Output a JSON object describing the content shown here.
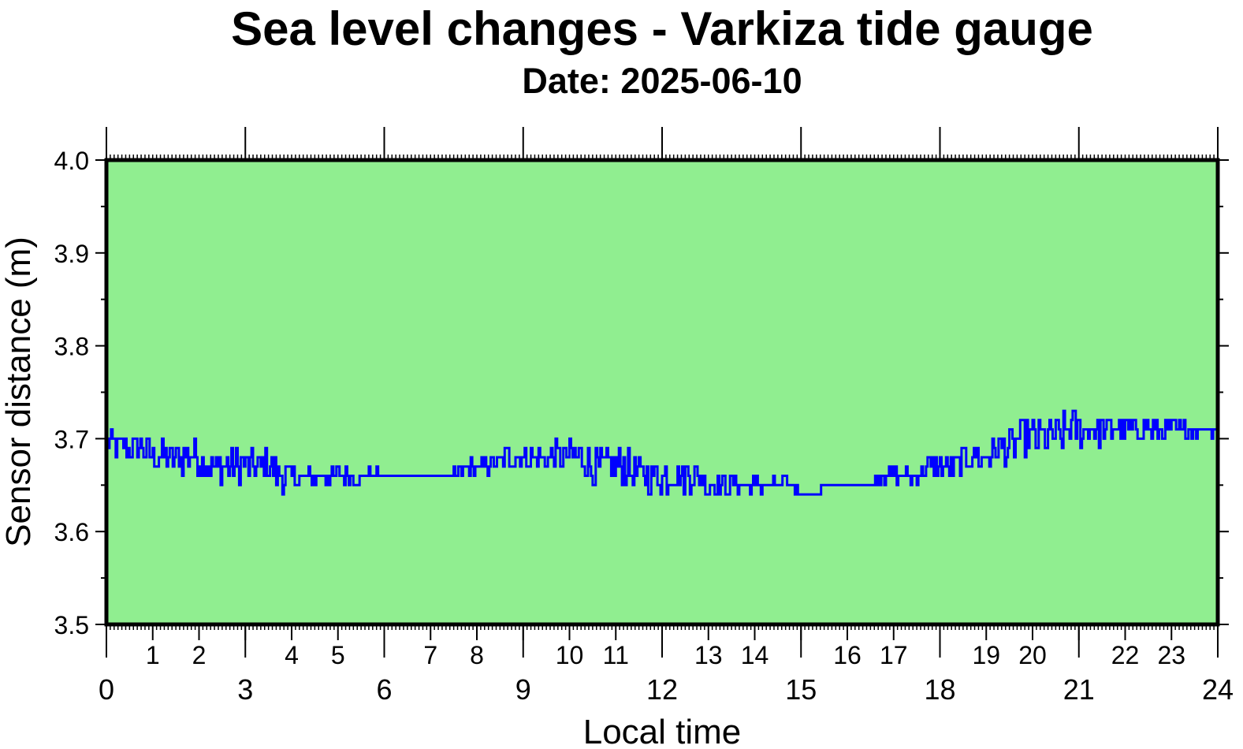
{
  "chart_data": {
    "type": "line",
    "title": "Sea level changes - Varkiza tide gauge",
    "subtitle": "Date: 2025-06-10",
    "xlabel": "Local time",
    "ylabel": "Sensor distance (m)",
    "xlim": [
      0,
      24
    ],
    "ylim": [
      3.5,
      4.0
    ],
    "x_major_ticks": [
      0,
      3,
      6,
      9,
      12,
      15,
      18,
      21,
      24
    ],
    "x_minor_ticks": [
      1,
      2,
      4,
      5,
      7,
      8,
      10,
      11,
      13,
      14,
      16,
      17,
      19,
      20,
      22,
      23
    ],
    "y_ticks": [
      "3.5",
      "3.6",
      "3.7",
      "3.8",
      "3.9",
      "4.0"
    ],
    "plot_background": "#90ee90",
    "line_color": "#0000ff",
    "series": [
      {
        "x": [
          0.0,
          0.25,
          0.5,
          0.75,
          1.0,
          1.25,
          1.5,
          1.75,
          2.0,
          2.25,
          2.5,
          2.75,
          3.0,
          3.25,
          3.5,
          3.75,
          4.0,
          4.25,
          4.5,
          4.75,
          5.0,
          5.25,
          5.5,
          5.75,
          6.0,
          6.25,
          6.5,
          6.75,
          7.0,
          7.25,
          7.5,
          7.75,
          8.0,
          8.25,
          8.5,
          8.75,
          9.0,
          9.25,
          9.5,
          9.75,
          10.0,
          10.25,
          10.5,
          10.75,
          11.0,
          11.25,
          11.5,
          11.75,
          12.0,
          12.25,
          12.5,
          12.75,
          13.0,
          13.25,
          13.5,
          13.75,
          14.0,
          14.25,
          14.5,
          14.75,
          15.0,
          15.25,
          15.5,
          15.75,
          16.0,
          16.25,
          16.5,
          16.75,
          17.0,
          17.25,
          17.5,
          17.75,
          18.0,
          18.25,
          18.5,
          18.75,
          19.0,
          19.25,
          19.5,
          19.75,
          20.0,
          20.25,
          20.5,
          20.75,
          21.0,
          21.25,
          21.5,
          21.75,
          22.0,
          22.25,
          22.5,
          22.75,
          23.0,
          23.25,
          23.5,
          23.75,
          24.0
        ],
        "y": [
          3.7,
          3.69,
          3.69,
          3.69,
          3.68,
          3.68,
          3.68,
          3.68,
          3.68,
          3.67,
          3.67,
          3.67,
          3.67,
          3.67,
          3.67,
          3.66,
          3.66,
          3.66,
          3.66,
          3.66,
          3.66,
          3.66,
          3.66,
          3.66,
          3.66,
          3.66,
          3.66,
          3.66,
          3.66,
          3.66,
          3.66,
          3.67,
          3.67,
          3.67,
          3.68,
          3.68,
          3.68,
          3.68,
          3.68,
          3.68,
          3.68,
          3.68,
          3.67,
          3.67,
          3.67,
          3.67,
          3.66,
          3.66,
          3.66,
          3.66,
          3.66,
          3.66,
          3.65,
          3.65,
          3.65,
          3.65,
          3.65,
          3.65,
          3.65,
          3.65,
          3.64,
          3.64,
          3.65,
          3.65,
          3.65,
          3.65,
          3.65,
          3.66,
          3.66,
          3.66,
          3.66,
          3.67,
          3.67,
          3.67,
          3.68,
          3.68,
          3.68,
          3.69,
          3.69,
          3.7,
          3.7,
          3.7,
          3.7,
          3.71,
          3.71,
          3.71,
          3.71,
          3.71,
          3.71,
          3.71,
          3.71,
          3.71,
          3.71,
          3.71,
          3.71,
          3.71,
          3.71
        ]
      }
    ]
  }
}
